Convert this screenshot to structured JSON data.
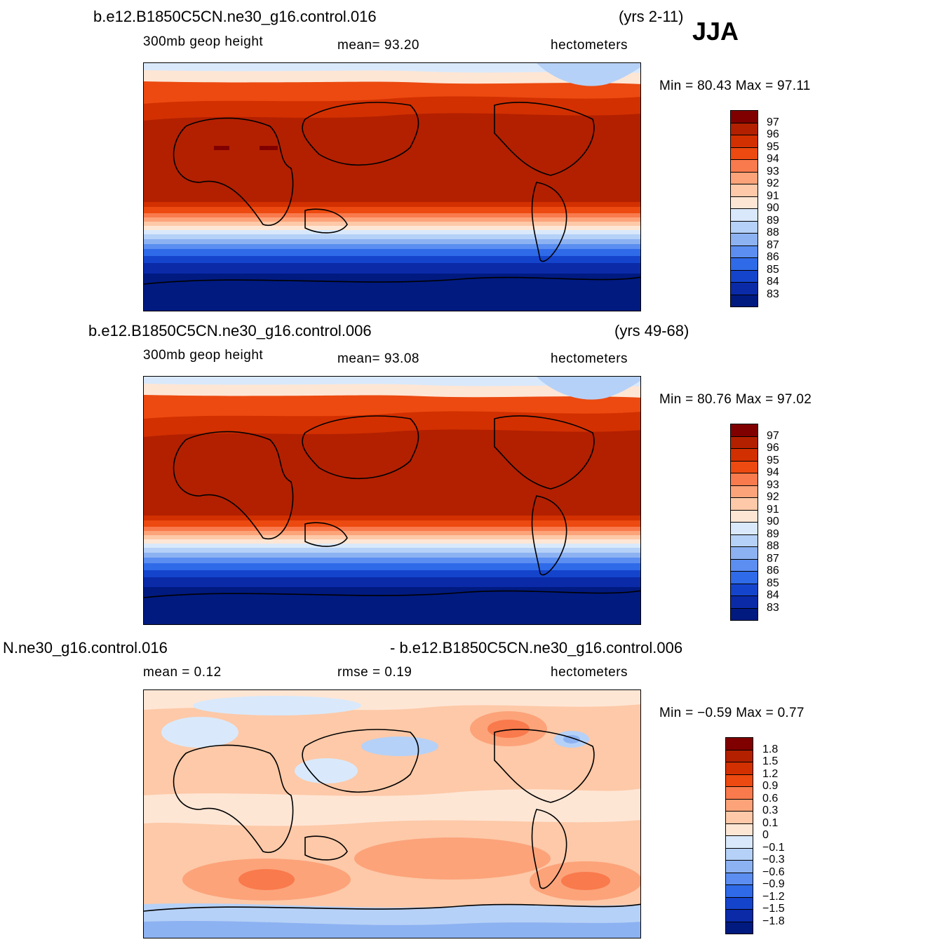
{
  "season": "JJA",
  "panels": [
    {
      "case_title": "b.e12.B1850C5CN.ne30_g16.control.016",
      "years": "(yrs 2-11)",
      "variable": "300mb  geop  height",
      "stat1": "mean=   93.20",
      "units": "hectometers",
      "minmax": "Min =   80.43  Max =   97.11",
      "colorbar_labels": [
        "97",
        "96",
        "95",
        "94",
        "93",
        "92",
        "91",
        "90",
        "89",
        "88",
        "87",
        "86",
        "85",
        "84",
        "83"
      ]
    },
    {
      "case_title": "b.e12.B1850C5CN.ne30_g16.control.006",
      "years": "(yrs 49-68)",
      "variable": "300mb  geop  height",
      "stat1": "mean=   93.08",
      "units": "hectometers",
      "minmax": "Min =   80.76  Max =   97.02",
      "colorbar_labels": [
        "97",
        "96",
        "95",
        "94",
        "93",
        "92",
        "91",
        "90",
        "89",
        "88",
        "87",
        "86",
        "85",
        "84",
        "83"
      ]
    },
    {
      "case_title": "N.ne30_g16.control.016",
      "case_title_right": "- b.e12.B1850C5CN.ne30_g16.control.006",
      "stat1": "mean =     0.12",
      "stat2": "rmse =     0.19",
      "units": "hectometers",
      "minmax": "Min =   −0.59  Max =     0.77",
      "colorbar_labels": [
        "1.8",
        "1.5",
        "1.2",
        "0.9",
        "0.6",
        "0.3",
        "0.1",
        "0",
        "−0.1",
        "−0.3",
        "−0.6",
        "−0.9",
        "−1.2",
        "−1.5",
        "−1.8"
      ]
    }
  ],
  "colors": {
    "abs_levels": [
      "#800000",
      "#b22000",
      "#d23000",
      "#ec4a10",
      "#f97a4c",
      "#fca37a",
      "#fdc9a8",
      "#fee6d5",
      "#d9e9fb",
      "#b6d1f7",
      "#8db2f2",
      "#5b8ef0",
      "#2f6ae8",
      "#1544cc",
      "#0a2aa8",
      "#001a80"
    ],
    "diff_levels": [
      "#800000",
      "#b22000",
      "#d23000",
      "#ec4a10",
      "#f97a4c",
      "#fca37a",
      "#fdc9a8",
      "#fee6d5",
      "#d9e9fb",
      "#b6d1f7",
      "#8db2f2",
      "#5b8ef0",
      "#2f6ae8",
      "#1544cc",
      "#0a2aa8",
      "#001a80"
    ]
  }
}
